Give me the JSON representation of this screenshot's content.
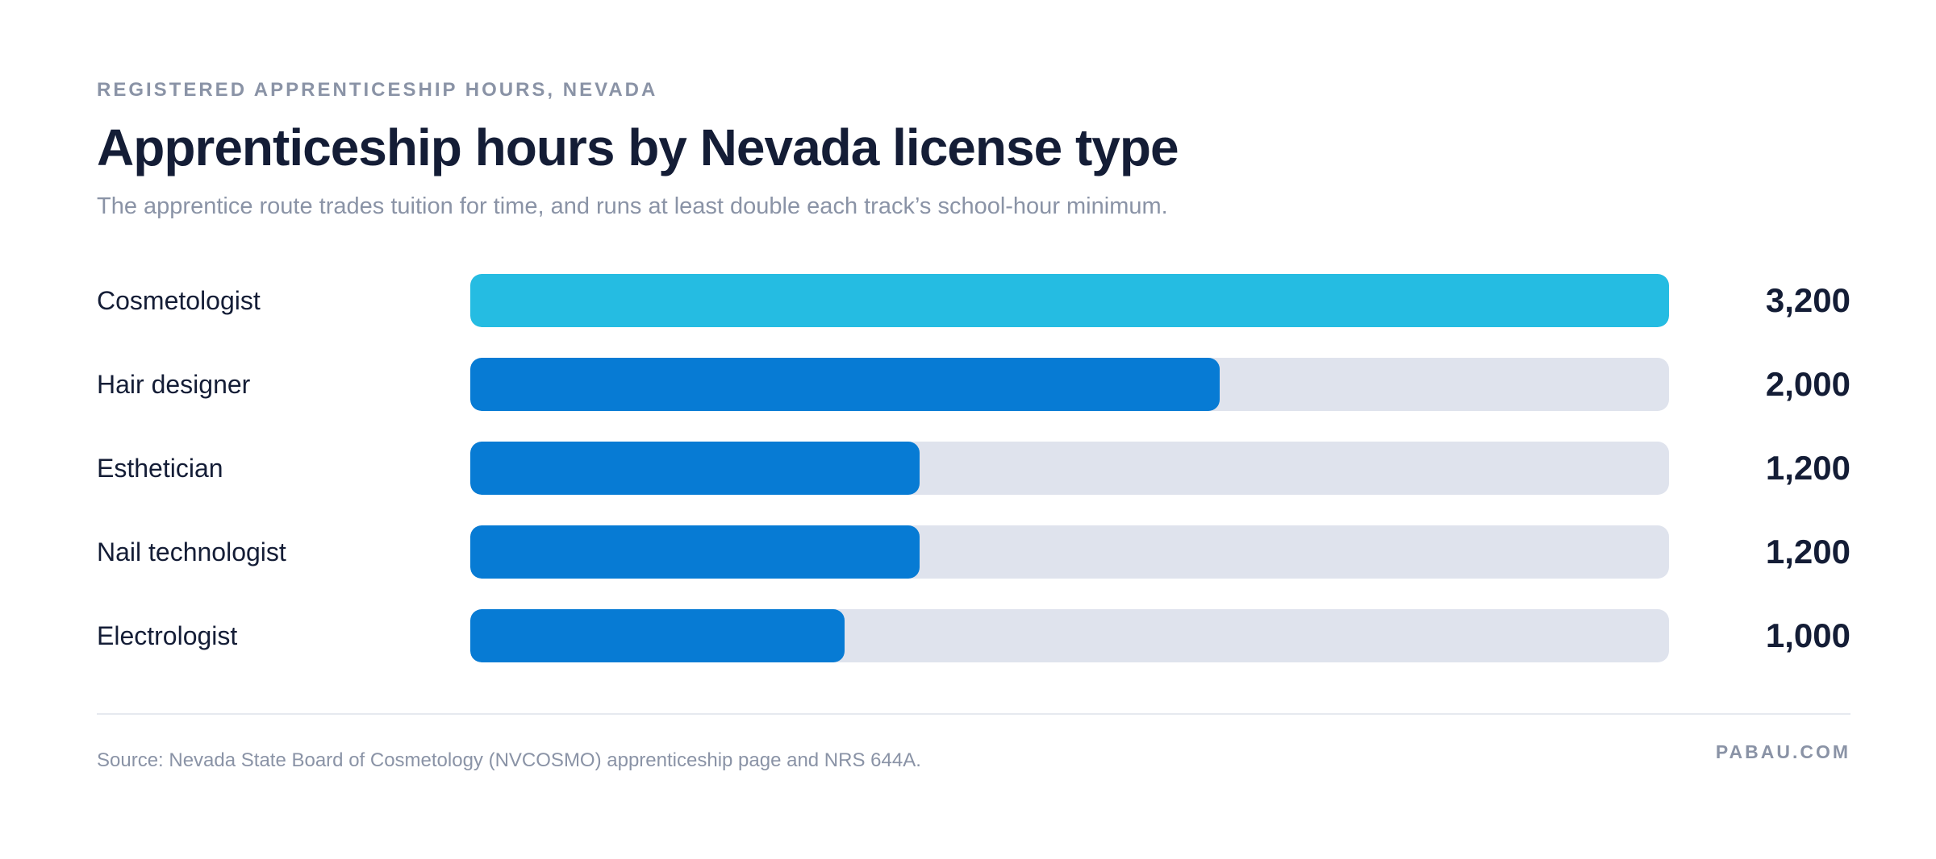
{
  "header": {
    "eyebrow": "REGISTERED APPRENTICESHIP HOURS, NEVADA",
    "title": "Apprenticeship hours by Nevada license type",
    "subtitle": "The apprentice route trades tuition for time, and runs at least double each track’s school-hour minimum."
  },
  "chart_data": {
    "type": "bar",
    "orientation": "horizontal",
    "title": "Apprenticeship hours by Nevada license type",
    "subtitle": "The apprentice route trades tuition for time, and runs at least double each track’s school-hour minimum.",
    "categories": [
      "Cosmetologist",
      "Hair designer",
      "Esthetician",
      "Nail technologist",
      "Electrologist"
    ],
    "values": [
      3200,
      2000,
      1200,
      1200,
      1000
    ],
    "value_labels": [
      "3,200",
      "2,000",
      "1,200",
      "1,200",
      "1,000"
    ],
    "xlim": [
      0,
      3200
    ],
    "grid": false,
    "legend": "none",
    "colors": {
      "highlight": "#25bce2",
      "bar": "#077bd4",
      "track": "#dfe3ed"
    }
  },
  "footer": {
    "source": "Source: Nevada State Board of Cosmetology (NVCOSMO) apprenticeship page and NRS 644A.",
    "brand": "PABAU.COM"
  }
}
